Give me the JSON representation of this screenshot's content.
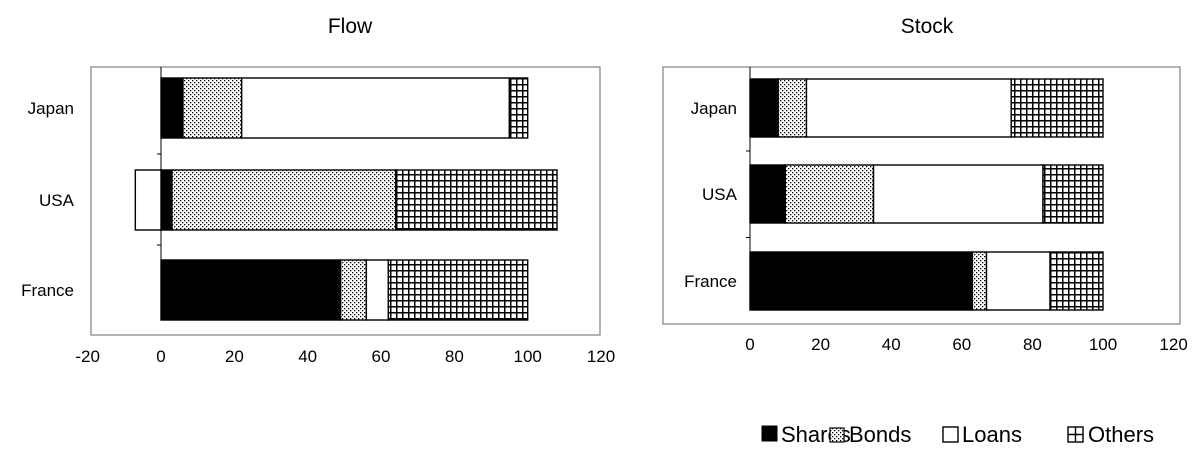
{
  "chart_data": [
    {
      "type": "bar",
      "orientation": "horizontal",
      "stacked": true,
      "title": "Flow",
      "categories": [
        "Japan",
        "USA",
        "France"
      ],
      "series": [
        {
          "name": "Shares",
          "values": [
            6,
            3,
            49
          ]
        },
        {
          "name": "Bonds",
          "values": [
            16,
            61,
            7
          ]
        },
        {
          "name": "Loans",
          "values": [
            73,
            -7,
            6
          ]
        },
        {
          "name": "Others",
          "values": [
            5,
            44,
            38
          ]
        }
      ],
      "xlim": [
        -20,
        120
      ],
      "xticks": [
        "-20",
        "0",
        "20",
        "40",
        "60",
        "80",
        "100",
        "120"
      ],
      "grid": false
    },
    {
      "type": "bar",
      "orientation": "horizontal",
      "stacked": true,
      "title": "Stock",
      "categories": [
        "Japan",
        "USA",
        "France"
      ],
      "series": [
        {
          "name": "Shares",
          "values": [
            8,
            10,
            63
          ]
        },
        {
          "name": "Bonds",
          "values": [
            8,
            25,
            4
          ]
        },
        {
          "name": "Loans",
          "values": [
            58,
            48,
            18
          ]
        },
        {
          "name": "Others",
          "values": [
            26,
            17,
            15
          ]
        }
      ],
      "xlim": [
        0,
        120
      ],
      "xticks": [
        "0",
        "20",
        "40",
        "60",
        "80",
        "100",
        "120"
      ],
      "grid": false
    }
  ],
  "legend": {
    "placement": "bottom-right",
    "items": [
      {
        "name": "Shares",
        "pattern": "solid-black"
      },
      {
        "name": "Bonds",
        "pattern": "dots"
      },
      {
        "name": "Loans",
        "pattern": "white"
      },
      {
        "name": "Others",
        "pattern": "grid"
      }
    ]
  },
  "colors": {
    "ink": "#000000",
    "frame": "#808080",
    "background": "#ffffff"
  }
}
